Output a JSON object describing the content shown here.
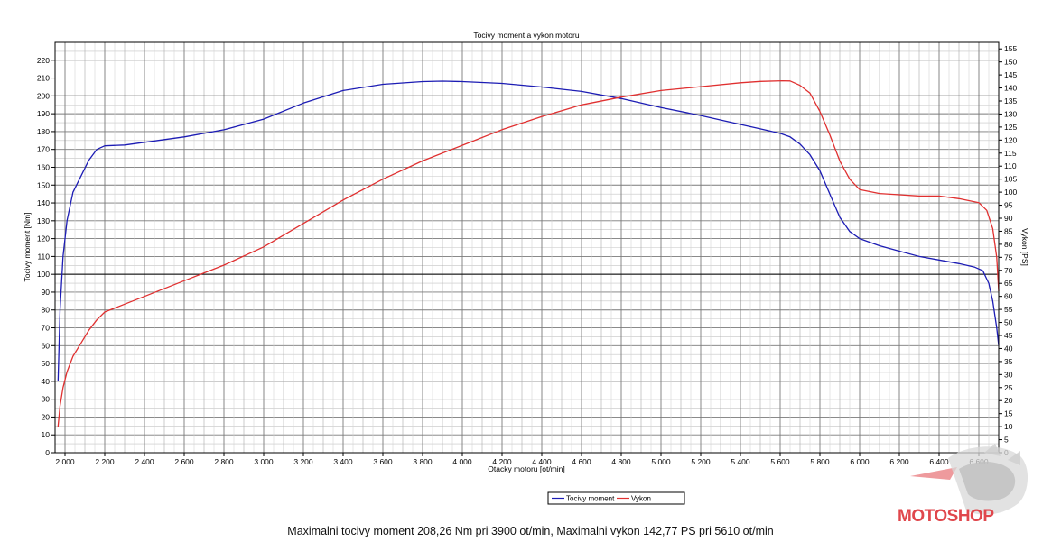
{
  "summary": "Maximalni tocivy moment 208,26 Nm pri 3900 ot/min,  Maximalni vykon 142,77 PS pri 5610 ot/min",
  "watermark": "MOTOSHOP",
  "chart_data": {
    "type": "line",
    "title": "Tocivy moment a vykon motoru",
    "xlabel": "Otacky motoru [ot/min]",
    "ylabel": "Tocivy moment [Nm]",
    "y2label": "Vykon [PS]",
    "xlim": [
      1950,
      6700
    ],
    "ylim": [
      0,
      230
    ],
    "y2lim": [
      0,
      157.5
    ],
    "grid": true,
    "legend_position": "bottom-center",
    "x_ticks": [
      2000,
      2200,
      2400,
      2600,
      2800,
      3000,
      3200,
      3400,
      3600,
      3800,
      4000,
      4200,
      4400,
      4600,
      4800,
      5000,
      5200,
      5400,
      5600,
      5800,
      6000,
      6200,
      6400,
      6600
    ],
    "x_tick_labels": [
      "2 000",
      "2 200",
      "2 400",
      "2 600",
      "2 800",
      "3 000",
      "3 200",
      "3 400",
      "3 600",
      "3 800",
      "4 000",
      "4 200",
      "4 400",
      "4 600",
      "4 800",
      "5 000",
      "5 200",
      "5 400",
      "5 600",
      "5 800",
      "6 000",
      "6 200",
      "6 400",
      "6 600"
    ],
    "y_ticks": [
      0,
      10,
      20,
      30,
      40,
      50,
      60,
      70,
      80,
      90,
      100,
      110,
      120,
      130,
      140,
      150,
      160,
      170,
      180,
      190,
      200,
      210,
      220
    ],
    "y2_ticks": [
      0,
      5,
      10,
      15,
      20,
      25,
      30,
      35,
      40,
      45,
      50,
      55,
      60,
      65,
      70,
      75,
      80,
      85,
      90,
      95,
      100,
      105,
      110,
      115,
      120,
      125,
      130,
      135,
      140,
      145,
      150,
      155
    ],
    "series": [
      {
        "name": "Tocivy moment",
        "axis": "left",
        "color": "#1c1cb4",
        "x": [
          1965,
          1975,
          1990,
          2010,
          2040,
          2080,
          2120,
          2160,
          2200,
          2300,
          2400,
          2600,
          2800,
          3000,
          3200,
          3400,
          3600,
          3800,
          3900,
          4000,
          4200,
          4400,
          4600,
          4800,
          5000,
          5200,
          5400,
          5500,
          5600,
          5650,
          5700,
          5750,
          5800,
          5850,
          5900,
          5950,
          6000,
          6100,
          6200,
          6300,
          6400,
          6500,
          6580,
          6620,
          6650,
          6670,
          6690,
          6700
        ],
        "y": [
          40,
          80,
          110,
          130,
          146,
          155,
          164,
          170,
          172,
          172.5,
          174,
          177,
          181,
          187,
          196,
          203,
          206.5,
          208,
          208.26,
          208,
          207,
          205,
          202.5,
          198.5,
          193.5,
          189,
          184,
          181.5,
          179,
          177,
          173,
          167,
          158,
          145,
          132,
          124,
          120,
          116,
          113,
          110,
          108,
          106,
          104,
          102,
          95,
          85,
          70,
          60
        ]
      },
      {
        "name": "Vykon",
        "axis": "right",
        "color": "#e03030",
        "x": [
          1965,
          1975,
          1990,
          2010,
          2040,
          2080,
          2120,
          2160,
          2200,
          2300,
          2400,
          2600,
          2800,
          3000,
          3200,
          3400,
          3600,
          3800,
          4000,
          4200,
          4400,
          4600,
          4800,
          5000,
          5200,
          5400,
          5500,
          5610,
          5650,
          5700,
          5750,
          5800,
          5850,
          5900,
          5950,
          6000,
          6100,
          6200,
          6300,
          6400,
          6500,
          6600,
          6640,
          6670,
          6690,
          6700
        ],
        "y": [
          10,
          18,
          25,
          31,
          37,
          42,
          47,
          51,
          54,
          57,
          60,
          66,
          72,
          79,
          88,
          97,
          105,
          112,
          118,
          124,
          129,
          133.5,
          136.5,
          139,
          140.5,
          142,
          142.5,
          142.77,
          142.7,
          141,
          138,
          131,
          122,
          112,
          105,
          101,
          99.5,
          99,
          98.5,
          98.5,
          97.5,
          96,
          93,
          86,
          75,
          62
        ]
      }
    ]
  }
}
